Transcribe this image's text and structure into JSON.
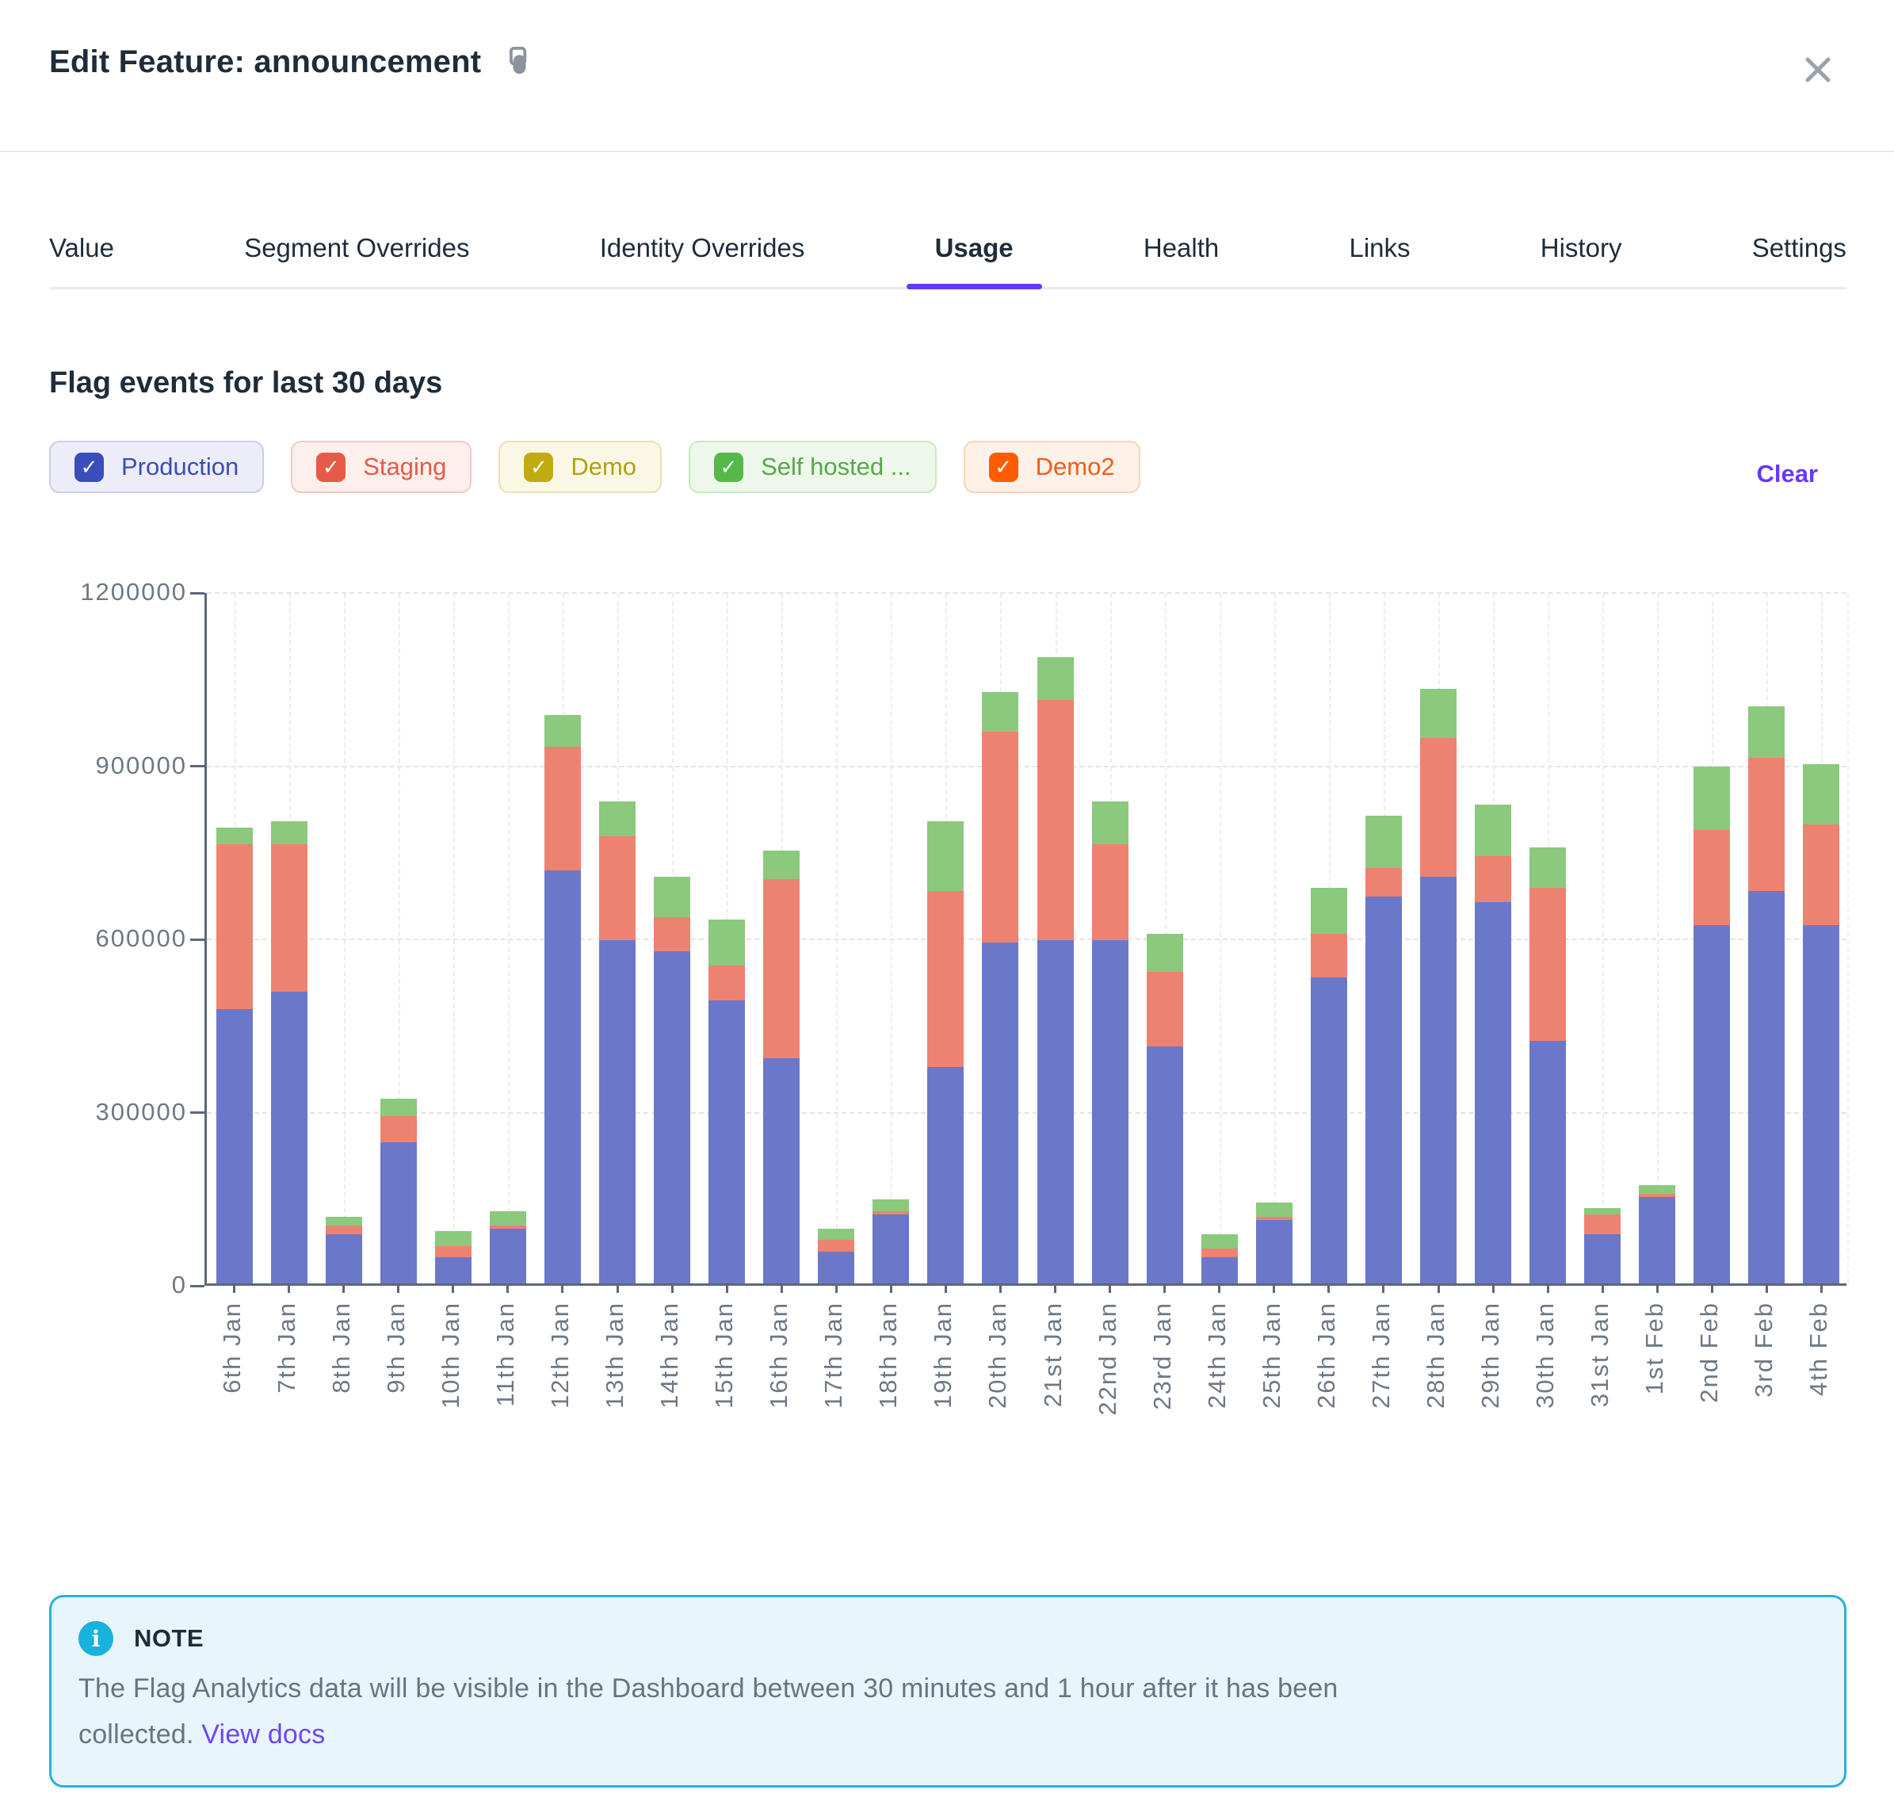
{
  "header": {
    "title": "Edit Feature: announcement",
    "close_icon": "x",
    "copy_icon": "copy"
  },
  "tabs": [
    {
      "label": "Value",
      "active": false
    },
    {
      "label": "Segment Overrides",
      "active": false
    },
    {
      "label": "Identity Overrides",
      "active": false
    },
    {
      "label": "Usage",
      "active": true
    },
    {
      "label": "Health",
      "active": false
    },
    {
      "label": "Links",
      "active": false
    },
    {
      "label": "History",
      "active": false
    },
    {
      "label": "Settings",
      "active": false
    }
  ],
  "usage": {
    "section_title": "Flag events for last 30 days",
    "clear_label": "Clear",
    "accent_color": "#6837fc",
    "filters": [
      {
        "label": "Production",
        "checked": true,
        "fg": "#3a4db5",
        "box": "#3a4dbb",
        "bg": "#ededf9",
        "border": "#c9cdf0"
      },
      {
        "label": "Staging",
        "checked": true,
        "fg": "#e65a48",
        "box": "#e65a48",
        "bg": "#fdefec",
        "border": "#f6c9c1"
      },
      {
        "label": "Demo",
        "checked": true,
        "fg": "#b2a20c",
        "box": "#c2ab10",
        "bg": "#faf7e4",
        "border": "#e8e1b5"
      },
      {
        "label": "Self hosted ...",
        "checked": true,
        "fg": "#57a84b",
        "box": "#55b949",
        "bg": "#edf7ea",
        "border": "#c9e8c1"
      },
      {
        "label": "Demo2",
        "checked": true,
        "fg": "#f45c17",
        "box": "#fe5c03",
        "bg": "#fdf1e8",
        "border": "#fbd2b5"
      }
    ]
  },
  "chart_data": {
    "type": "bar",
    "stacked": true,
    "title": "Flag events for last 30 days",
    "xlabel": "",
    "ylabel": "",
    "ylim": [
      0,
      1200000
    ],
    "yticks": [
      0,
      300000,
      600000,
      900000,
      1200000
    ],
    "grid": "dashed",
    "legend_position": "none",
    "categories": [
      "6th Jan",
      "7th Jan",
      "8th Jan",
      "9th Jan",
      "10th Jan",
      "11th Jan",
      "12th Jan",
      "13th Jan",
      "14th Jan",
      "15th Jan",
      "16th Jan",
      "17th Jan",
      "18th Jan",
      "19th Jan",
      "20th Jan",
      "21st Jan",
      "22nd Jan",
      "23rd Jan",
      "24th Jan",
      "25th Jan",
      "26th Jan",
      "27th Jan",
      "28th Jan",
      "29th Jan",
      "30th Jan",
      "31st Jan",
      "1st Feb",
      "2nd Feb",
      "3rd Feb",
      "4th Feb"
    ],
    "series": [
      {
        "name": "Production",
        "color": "#6b78c9",
        "values": [
          475000,
          505000,
          85000,
          245000,
          45000,
          95000,
          715000,
          595000,
          575000,
          490000,
          390000,
          55000,
          120000,
          375000,
          590000,
          595000,
          595000,
          410000,
          45000,
          110000,
          530000,
          670000,
          705000,
          660000,
          420000,
          85000,
          150000,
          620000,
          680000,
          620000
        ]
      },
      {
        "name": "Staging",
        "color": "#ee8271",
        "values": [
          285000,
          255000,
          15000,
          45000,
          20000,
          5000,
          215000,
          180000,
          60000,
          60000,
          310000,
          20000,
          5000,
          305000,
          365000,
          415000,
          165000,
          130000,
          15000,
          5000,
          75000,
          50000,
          240000,
          80000,
          265000,
          35000,
          5000,
          165000,
          230000,
          175000
        ]
      },
      {
        "name": "Self hosted ...",
        "color": "#8bc97d",
        "values": [
          30000,
          40000,
          15000,
          30000,
          25000,
          25000,
          55000,
          60000,
          70000,
          80000,
          50000,
          20000,
          20000,
          120000,
          70000,
          75000,
          75000,
          65000,
          25000,
          25000,
          80000,
          90000,
          85000,
          90000,
          70000,
          10000,
          15000,
          110000,
          90000,
          105000
        ]
      }
    ]
  },
  "note": {
    "label": "NOTE",
    "text_line1": "The Flag Analytics data will be visible in the Dashboard between 30 minutes and 1 hour after it has been",
    "text_line2": "collected. ",
    "link_label": "View docs"
  }
}
